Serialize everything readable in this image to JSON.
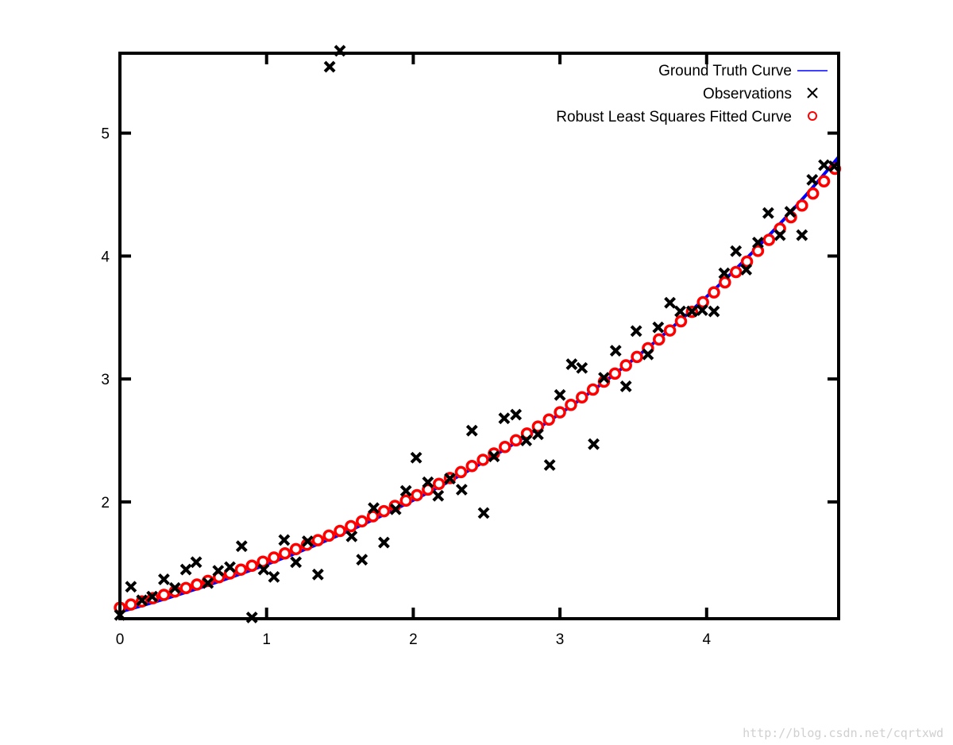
{
  "chart_data": {
    "type": "scatter",
    "xlim": [
      0,
      4.9
    ],
    "ylim": [
      1.05,
      5.65
    ],
    "xticks": [
      0,
      1,
      2,
      3,
      4
    ],
    "yticks": [
      2,
      3,
      4,
      5
    ],
    "grid": false,
    "legend_position": "top-right",
    "series": [
      {
        "name": "Ground Truth Curve",
        "kind": "line",
        "color": "#0000ff",
        "function": "exp(0.3*x + 0.1)"
      },
      {
        "name": "Observations",
        "kind": "cross",
        "color": "#000000",
        "points": [
          [
            0,
            1.08
          ],
          [
            0.075,
            1.31
          ],
          [
            0.15,
            1.2
          ],
          [
            0.22,
            1.23
          ],
          [
            0.3,
            1.37
          ],
          [
            0.375,
            1.3
          ],
          [
            0.45,
            1.45
          ],
          [
            0.52,
            1.51
          ],
          [
            0.6,
            1.34
          ],
          [
            0.67,
            1.44
          ],
          [
            0.75,
            1.47
          ],
          [
            0.83,
            1.64
          ],
          [
            0.9,
            1.06
          ],
          [
            0.98,
            1.45
          ],
          [
            1.05,
            1.39
          ],
          [
            1.12,
            1.69
          ],
          [
            1.2,
            1.51
          ],
          [
            1.28,
            1.68
          ],
          [
            1.35,
            1.41
          ],
          [
            1.43,
            5.54
          ],
          [
            1.5,
            5.67
          ],
          [
            1.58,
            1.72
          ],
          [
            1.65,
            1.53
          ],
          [
            1.73,
            1.95
          ],
          [
            1.8,
            1.67
          ],
          [
            1.88,
            1.94
          ],
          [
            1.95,
            2.09
          ],
          [
            2.02,
            2.36
          ],
          [
            2.1,
            2.16
          ],
          [
            2.17,
            2.05
          ],
          [
            2.25,
            2.19
          ],
          [
            2.33,
            2.1
          ],
          [
            2.4,
            2.58
          ],
          [
            2.48,
            1.91
          ],
          [
            2.55,
            2.37
          ],
          [
            2.62,
            2.68
          ],
          [
            2.7,
            2.71
          ],
          [
            2.77,
            2.5
          ],
          [
            2.85,
            2.55
          ],
          [
            2.93,
            2.3
          ],
          [
            3.0,
            2.87
          ],
          [
            3.08,
            3.12
          ],
          [
            3.15,
            3.09
          ],
          [
            3.23,
            2.47
          ],
          [
            3.3,
            3.01
          ],
          [
            3.38,
            3.23
          ],
          [
            3.45,
            2.94
          ],
          [
            3.52,
            3.39
          ],
          [
            3.6,
            3.2
          ],
          [
            3.67,
            3.42
          ],
          [
            3.75,
            3.62
          ],
          [
            3.82,
            3.55
          ],
          [
            3.9,
            3.55
          ],
          [
            3.97,
            3.56
          ],
          [
            4.05,
            3.55
          ],
          [
            4.12,
            3.86
          ],
          [
            4.2,
            4.04
          ],
          [
            4.27,
            3.89
          ],
          [
            4.35,
            4.11
          ],
          [
            4.42,
            4.35
          ],
          [
            4.5,
            4.17
          ],
          [
            4.57,
            4.36
          ],
          [
            4.65,
            4.17
          ],
          [
            4.72,
            4.62
          ],
          [
            4.8,
            4.74
          ],
          [
            4.87,
            4.73
          ]
        ]
      },
      {
        "name": "Robust Least Squares Fitted Curve",
        "kind": "circle",
        "color": "#ff0000",
        "function": "exp(0.291*x + 0.131)",
        "x_start": 0,
        "x_step": 0.075,
        "count": 66
      }
    ]
  },
  "watermark": "http://blog.csdn.net/cqrtxwd"
}
